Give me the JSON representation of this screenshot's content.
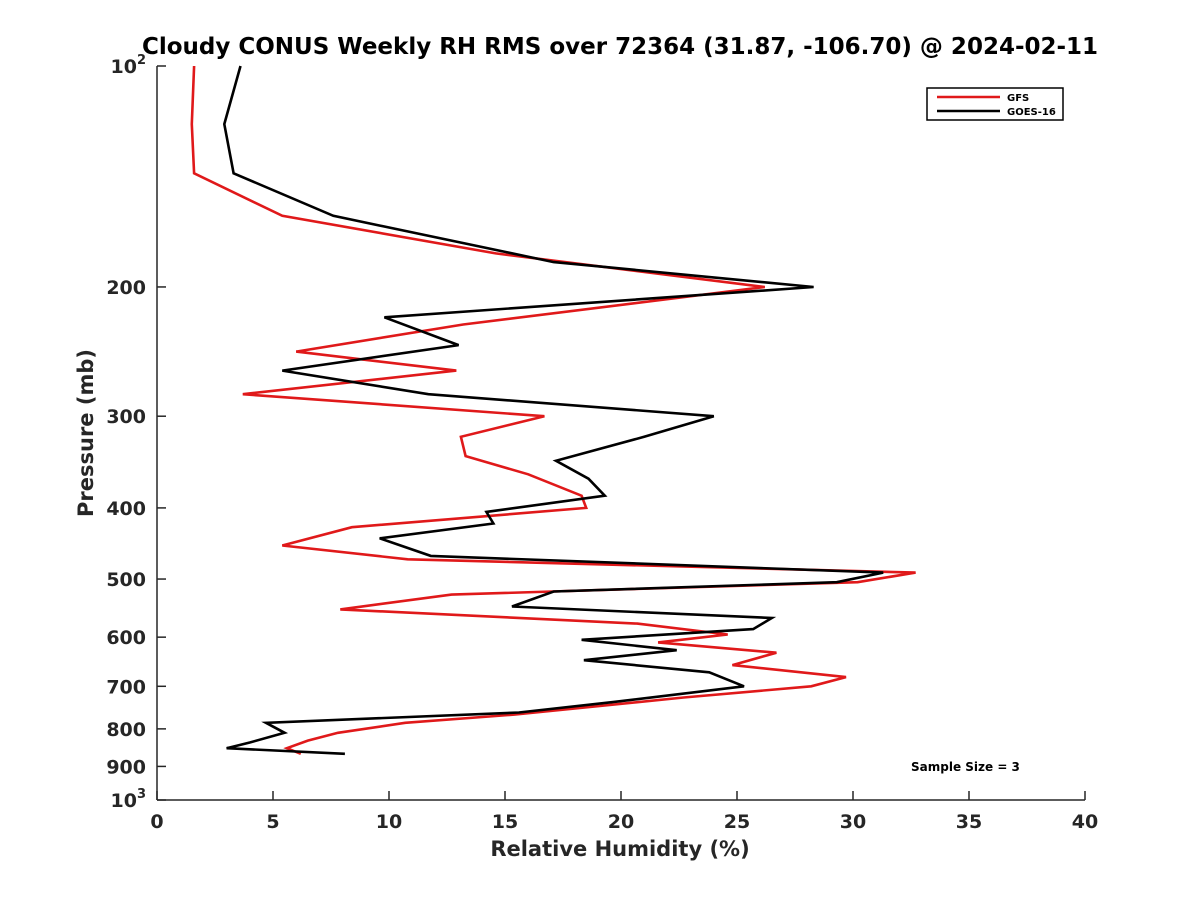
{
  "chart_data": {
    "type": "line",
    "title": "Cloudy CONUS Weekly RH RMS over 72364 (31.87, -106.70) @ 2024-02-11",
    "xlabel": "Relative Humidity (%)",
    "ylabel": "Pressure (mb)",
    "xlim": [
      0,
      40
    ],
    "ylim": [
      100,
      1000
    ],
    "y_scale": "log",
    "y_reversed": true,
    "x_ticks": [
      "0",
      "5",
      "10",
      "15",
      "20",
      "25",
      "30",
      "35",
      "40"
    ],
    "y_ticks": [
      {
        "value": 100,
        "base": "10",
        "exp": "2"
      },
      {
        "value": 200,
        "label": "200"
      },
      {
        "value": 300,
        "label": "300"
      },
      {
        "value": 400,
        "label": "400"
      },
      {
        "value": 500,
        "label": "500"
      },
      {
        "value": 600,
        "label": "600"
      },
      {
        "value": 700,
        "label": "700"
      },
      {
        "value": 800,
        "label": "800"
      },
      {
        "value": 900,
        "label": "900"
      },
      {
        "value": 1000,
        "base": "10",
        "exp": "3"
      }
    ],
    "legend": {
      "placement": "top-right"
    },
    "annotation": "Sample Size = 3",
    "series": [
      {
        "name": "GFS",
        "color": "#e0191a",
        "points": [
          [
            1.6,
            100
          ],
          [
            1.5,
            120
          ],
          [
            1.6,
            140
          ],
          [
            5.4,
            160
          ],
          [
            14.6,
            180
          ],
          [
            26.2,
            200
          ],
          [
            13.2,
            225
          ],
          [
            6.0,
            245
          ],
          [
            12.9,
            260
          ],
          [
            3.7,
            280
          ],
          [
            16.7,
            300
          ],
          [
            13.1,
            320
          ],
          [
            13.3,
            340
          ],
          [
            16.0,
            360
          ],
          [
            18.3,
            385
          ],
          [
            18.5,
            400
          ],
          [
            8.4,
            425
          ],
          [
            5.4,
            450
          ],
          [
            10.8,
            470
          ],
          [
            32.7,
            490
          ],
          [
            30.2,
            505
          ],
          [
            12.7,
            525
          ],
          [
            7.9,
            550
          ],
          [
            20.7,
            575
          ],
          [
            24.6,
            595
          ],
          [
            21.6,
            610
          ],
          [
            26.7,
            630
          ],
          [
            24.8,
            655
          ],
          [
            29.7,
            680
          ],
          [
            28.2,
            700
          ],
          [
            22.7,
            725
          ],
          [
            15.4,
            765
          ],
          [
            10.7,
            785
          ],
          [
            7.8,
            810
          ],
          [
            6.5,
            830
          ],
          [
            5.6,
            850
          ],
          [
            6.2,
            865
          ]
        ]
      },
      {
        "name": "GOES-16",
        "color": "#000000",
        "points": [
          [
            3.6,
            100
          ],
          [
            2.9,
            120
          ],
          [
            3.3,
            140
          ],
          [
            7.6,
            160
          ],
          [
            17.1,
            185
          ],
          [
            28.3,
            200
          ],
          [
            9.8,
            220
          ],
          [
            13.0,
            240
          ],
          [
            5.4,
            260
          ],
          [
            11.7,
            280
          ],
          [
            24.0,
            300
          ],
          [
            21.0,
            320
          ],
          [
            17.2,
            345
          ],
          [
            18.6,
            365
          ],
          [
            19.3,
            385
          ],
          [
            14.2,
            405
          ],
          [
            14.5,
            420
          ],
          [
            9.6,
            440
          ],
          [
            11.8,
            465
          ],
          [
            31.3,
            490
          ],
          [
            29.3,
            505
          ],
          [
            17.1,
            520
          ],
          [
            15.3,
            545
          ],
          [
            26.5,
            565
          ],
          [
            25.7,
            585
          ],
          [
            18.3,
            605
          ],
          [
            22.4,
            625
          ],
          [
            18.4,
            645
          ],
          [
            23.8,
            670
          ],
          [
            25.3,
            700
          ],
          [
            19.7,
            735
          ],
          [
            15.6,
            760
          ],
          [
            4.7,
            785
          ],
          [
            5.5,
            810
          ],
          [
            4.0,
            835
          ],
          [
            3.0,
            850
          ],
          [
            8.1,
            865
          ]
        ]
      }
    ]
  }
}
